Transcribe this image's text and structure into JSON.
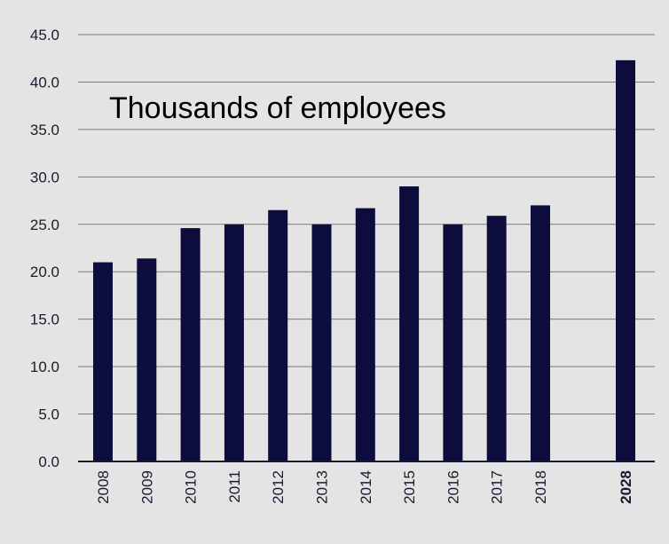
{
  "chart_data": {
    "type": "bar",
    "title": "Thousands of employees",
    "categories": [
      "2008",
      "2009",
      "2010",
      "2011",
      "2012",
      "2013",
      "2014",
      "2015",
      "2016",
      "2017",
      "2018",
      "2028"
    ],
    "values": [
      21.0,
      21.4,
      24.6,
      25.0,
      26.5,
      25.0,
      26.7,
      29.0,
      25.0,
      25.9,
      27.0,
      42.3
    ],
    "ylim": [
      0,
      45
    ],
    "yticks": [
      "0.0",
      "5.0",
      "10.0",
      "15.0",
      "20.0",
      "25.0",
      "30.0",
      "35.0",
      "40.0",
      "45.0"
    ],
    "bold_categories": [
      "2028"
    ],
    "grid": true,
    "colors": {
      "bar": "#0d0d3d",
      "grid": "#7a7a7a",
      "background": "#e4e4e4",
      "axis": "#1a1a2e"
    }
  }
}
